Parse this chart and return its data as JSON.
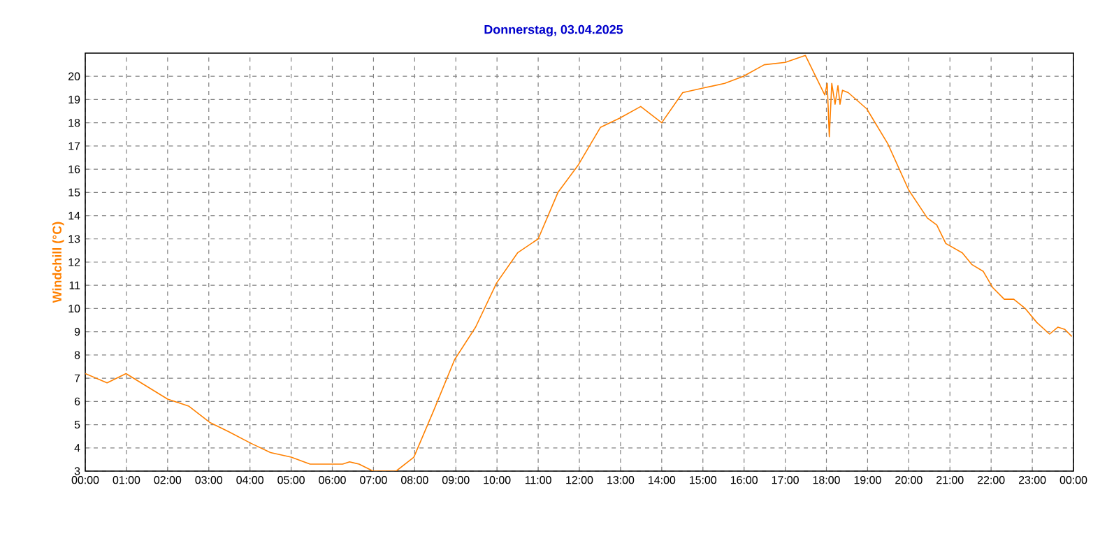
{
  "chart_data": {
    "type": "line",
    "title": "Donnerstag, 03.04.2025",
    "ylabel": "Windchill  (°C)",
    "x": [
      0,
      0.53,
      0.99,
      2.0,
      2.51,
      3.02,
      3.48,
      4.02,
      4.5,
      5.0,
      5.46,
      6.25,
      6.42,
      6.65,
      6.99,
      7.55,
      7.98,
      8.46,
      8.97,
      9.48,
      9.99,
      10.5,
      11.0,
      11.48,
      11.98,
      12.51,
      12.98,
      13.49,
      14.0,
      14.51,
      15.02,
      15.53,
      15.98,
      16.49,
      17.0,
      17.49,
      17.96,
      18.02,
      18.07,
      18.13,
      18.21,
      18.28,
      18.33,
      18.39,
      18.53,
      18.98,
      19.49,
      20.0,
      20.45,
      20.68,
      20.9,
      21.3,
      21.53,
      21.81,
      22.04,
      22.32,
      22.55,
      22.83,
      23.11,
      23.42,
      23.62,
      23.79,
      23.96
    ],
    "values": [
      7.2,
      6.8,
      7.2,
      6.1,
      5.8,
      5.1,
      4.7,
      4.2,
      3.8,
      3.6,
      3.3,
      3.3,
      3.4,
      3.3,
      3.0,
      3.0,
      3.6,
      5.6,
      7.8,
      9.2,
      11.1,
      12.4,
      13.0,
      15.0,
      16.2,
      17.8,
      18.2,
      18.7,
      18.0,
      19.3,
      19.5,
      19.7,
      20.0,
      20.5,
      20.6,
      20.9,
      19.2,
      19.7,
      17.4,
      19.7,
      18.8,
      19.6,
      18.8,
      19.4,
      19.3,
      18.6,
      17.1,
      15.1,
      13.9,
      13.6,
      12.8,
      12.4,
      11.9,
      11.6,
      10.9,
      10.4,
      10.4,
      10.0,
      9.4,
      8.9,
      9.2,
      9.1,
      8.8
    ],
    "color": "#ff8000",
    "line_style": "solid",
    "marker": "none",
    "grid": true,
    "xlim": [
      0,
      24
    ],
    "ylim": [
      3,
      21
    ],
    "xticks": [
      {
        "value": 0,
        "label": "00:00"
      },
      {
        "value": 1,
        "label": "01:00"
      },
      {
        "value": 2,
        "label": "02:00"
      },
      {
        "value": 3,
        "label": "03:00"
      },
      {
        "value": 4,
        "label": "04:00"
      },
      {
        "value": 5,
        "label": "05:00"
      },
      {
        "value": 6,
        "label": "06:00"
      },
      {
        "value": 7,
        "label": "07:00"
      },
      {
        "value": 8,
        "label": "08:00"
      },
      {
        "value": 9,
        "label": "09:00"
      },
      {
        "value": 10,
        "label": "10:00"
      },
      {
        "value": 11,
        "label": "11:00"
      },
      {
        "value": 12,
        "label": "12:00"
      },
      {
        "value": 13,
        "label": "13:00"
      },
      {
        "value": 14,
        "label": "14:00"
      },
      {
        "value": 15,
        "label": "15:00"
      },
      {
        "value": 16,
        "label": "16:00"
      },
      {
        "value": 17,
        "label": "17:00"
      },
      {
        "value": 18,
        "label": "18:00"
      },
      {
        "value": 19,
        "label": "19:00"
      },
      {
        "value": 20,
        "label": "20:00"
      },
      {
        "value": 21,
        "label": "21:00"
      },
      {
        "value": 22,
        "label": "22:00"
      },
      {
        "value": 23,
        "label": "23:00"
      },
      {
        "value": 24,
        "label": "00:00"
      }
    ],
    "yticks": [
      3,
      4,
      5,
      6,
      7,
      8,
      9,
      10,
      11,
      12,
      13,
      14,
      15,
      16,
      17,
      18,
      19,
      20
    ]
  }
}
